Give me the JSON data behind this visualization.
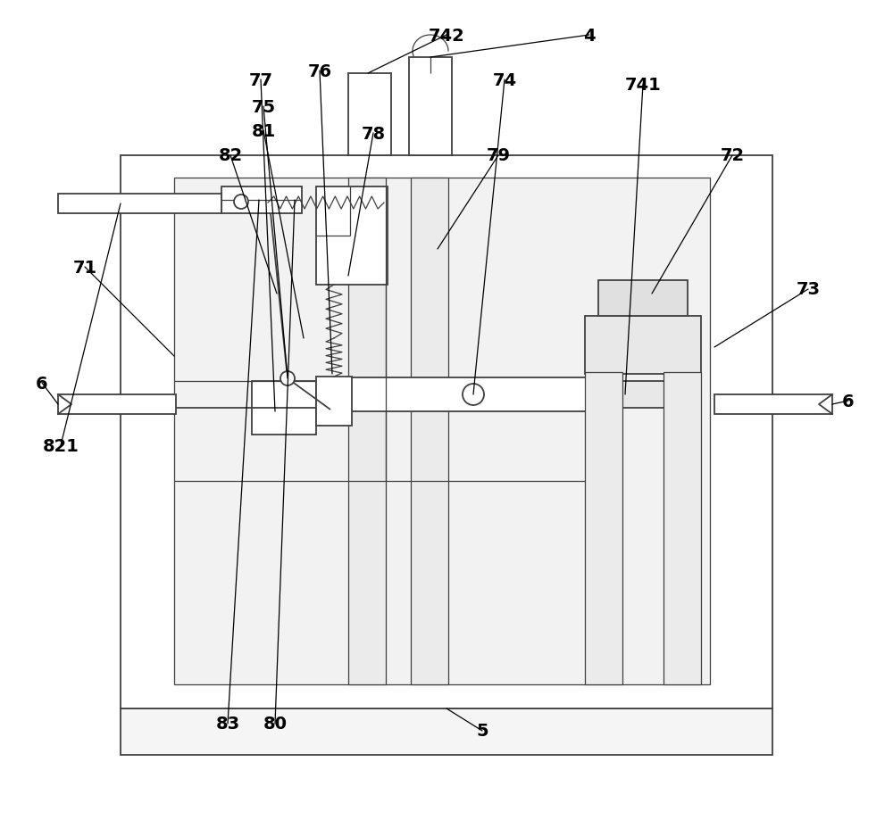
{
  "background_color": "#ffffff",
  "lc": "#404040",
  "fig_width": 10.0,
  "fig_height": 9.2,
  "lw_main": 1.3,
  "lw_thin": 0.9
}
